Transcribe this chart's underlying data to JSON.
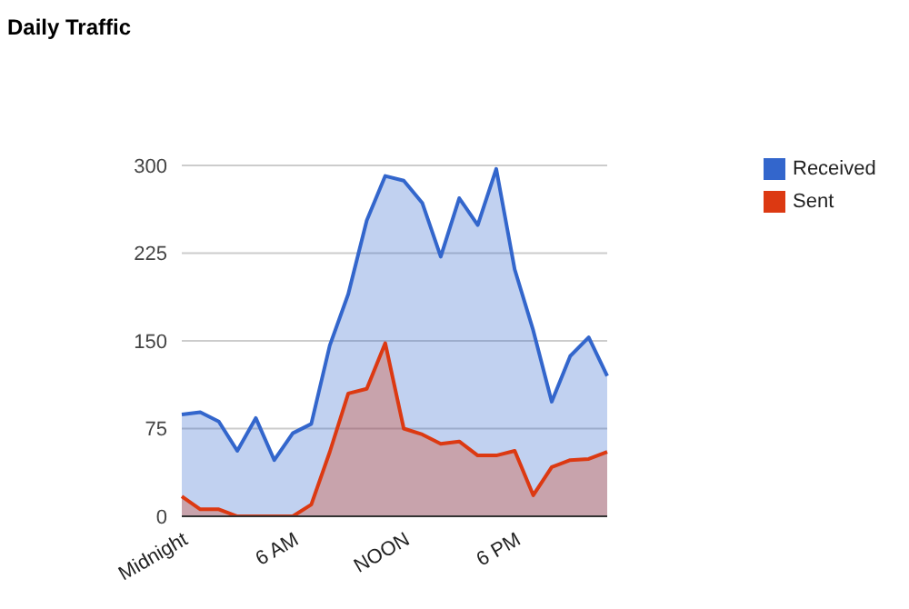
{
  "chart_data": {
    "type": "area",
    "title": "Daily Traffic",
    "categories": [
      "Midnight",
      null,
      null,
      null,
      null,
      null,
      "6 AM",
      null,
      null,
      null,
      null,
      null,
      "NOON",
      null,
      null,
      null,
      null,
      null,
      "6 PM",
      null,
      null,
      null,
      null,
      null
    ],
    "series": [
      {
        "name": "Received",
        "color": "#3366cc",
        "values": [
          87,
          89,
          81,
          56,
          84,
          48,
          71,
          79,
          146,
          190,
          253,
          291,
          287,
          268,
          222,
          272,
          249,
          297,
          211,
          159,
          98,
          137,
          153,
          120
        ]
      },
      {
        "name": "Sent",
        "color": "#dc3912",
        "values": [
          17,
          6,
          6,
          0,
          0,
          0,
          0,
          10,
          55,
          105,
          109,
          148,
          75,
          70,
          62,
          64,
          52,
          52,
          56,
          18,
          42,
          48,
          49,
          55
        ]
      }
    ],
    "ylim": [
      0,
      300
    ],
    "yticks": [
      0,
      75,
      150,
      225,
      300
    ],
    "grid": "y",
    "legend": "top right"
  }
}
